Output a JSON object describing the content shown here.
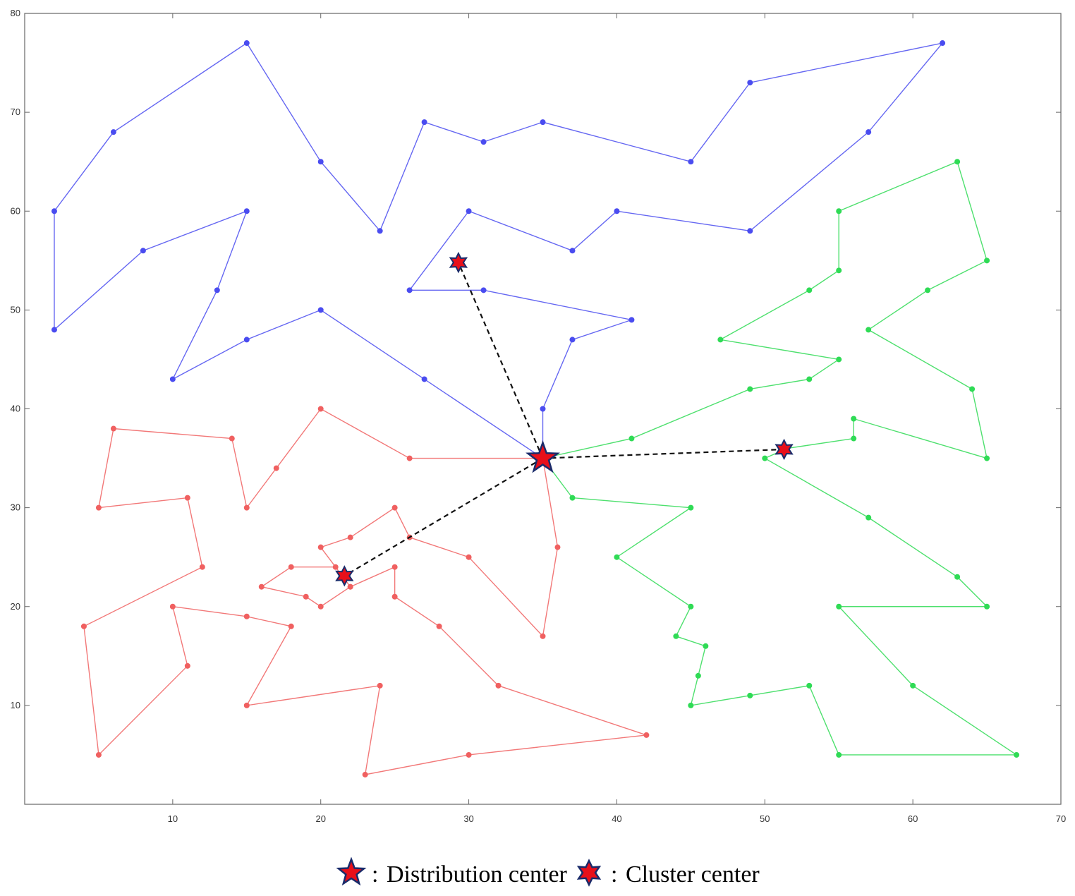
{
  "chart_data": {
    "type": "line",
    "title": "",
    "xlabel": "",
    "ylabel": "",
    "xlim": [
      0,
      70
    ],
    "ylim": [
      0,
      80
    ],
    "x_ticks": [
      "10",
      "20",
      "30",
      "40",
      "50",
      "60",
      "70"
    ],
    "y_ticks": [
      "10",
      "20",
      "30",
      "40",
      "50",
      "60",
      "70",
      "80"
    ],
    "grid": false,
    "distribution_center": {
      "x": 35,
      "y": 35
    },
    "series": [
      {
        "name": "blue route",
        "color": "#4a4cf0",
        "points": [
          [
            35,
            35
          ],
          [
            27,
            43
          ],
          [
            20,
            50
          ],
          [
            15,
            47
          ],
          [
            10,
            43
          ],
          [
            13,
            52
          ],
          [
            15,
            60
          ],
          [
            8,
            56
          ],
          [
            2,
            48
          ],
          [
            2,
            60
          ],
          [
            6,
            68
          ],
          [
            15,
            77
          ],
          [
            20,
            65
          ],
          [
            24,
            58
          ],
          [
            27,
            69
          ],
          [
            31,
            67
          ],
          [
            35,
            69
          ],
          [
            45,
            65
          ],
          [
            49,
            73
          ],
          [
            62,
            77
          ],
          [
            57,
            68
          ],
          [
            49,
            58
          ],
          [
            40,
            60
          ],
          [
            37,
            56
          ],
          [
            30,
            60
          ],
          [
            26,
            52
          ],
          [
            31,
            52
          ],
          [
            41,
            49
          ],
          [
            37,
            47
          ],
          [
            35,
            40
          ],
          [
            35,
            35
          ]
        ]
      },
      {
        "name": "red route",
        "color": "#f06060",
        "points": [
          [
            35,
            35
          ],
          [
            26,
            35
          ],
          [
            20,
            40
          ],
          [
            17,
            34
          ],
          [
            15,
            30
          ],
          [
            14,
            37
          ],
          [
            6,
            38
          ],
          [
            5,
            30
          ],
          [
            11,
            31
          ],
          [
            12,
            24
          ],
          [
            4,
            18
          ],
          [
            5,
            5
          ],
          [
            11,
            14
          ],
          [
            10,
            20
          ],
          [
            15,
            19
          ],
          [
            18,
            18
          ],
          [
            15,
            10
          ],
          [
            24,
            12
          ],
          [
            23,
            3
          ],
          [
            30,
            5
          ],
          [
            42,
            7
          ],
          [
            32,
            12
          ],
          [
            28,
            18
          ],
          [
            25,
            21
          ],
          [
            25,
            24
          ],
          [
            22,
            22
          ],
          [
            21,
            24
          ],
          [
            18,
            24
          ],
          [
            16,
            22
          ],
          [
            19,
            21
          ],
          [
            20,
            20
          ],
          [
            22,
            22
          ],
          [
            20,
            26
          ],
          [
            22,
            27
          ],
          [
            25,
            30
          ],
          [
            26,
            27
          ],
          [
            30,
            25
          ],
          [
            35,
            17
          ],
          [
            36,
            26
          ],
          [
            35,
            35
          ]
        ]
      },
      {
        "name": "green route",
        "color": "#2fdb55",
        "points": [
          [
            35,
            35
          ],
          [
            37,
            31
          ],
          [
            45,
            30
          ],
          [
            40,
            25
          ],
          [
            45,
            20
          ],
          [
            44,
            17
          ],
          [
            46,
            16
          ],
          [
            45.5,
            13
          ],
          [
            45,
            10
          ],
          [
            49,
            11
          ],
          [
            53,
            12
          ],
          [
            55,
            5
          ],
          [
            67,
            5
          ],
          [
            60,
            12
          ],
          [
            55,
            20
          ],
          [
            65,
            20
          ],
          [
            63,
            23
          ],
          [
            57,
            29
          ],
          [
            50,
            35
          ],
          [
            51.5,
            36
          ],
          [
            56,
            37
          ],
          [
            56,
            39
          ],
          [
            65,
            35
          ],
          [
            64,
            42
          ],
          [
            57,
            48
          ],
          [
            61,
            52
          ],
          [
            65,
            55
          ],
          [
            63,
            65
          ],
          [
            55,
            60
          ],
          [
            55,
            54
          ],
          [
            53,
            52
          ],
          [
            47,
            47
          ],
          [
            55,
            45
          ],
          [
            53,
            43
          ],
          [
            49,
            42
          ],
          [
            41,
            37
          ],
          [
            35,
            35
          ]
        ]
      }
    ],
    "cluster_centers": [
      {
        "x": 29.3,
        "y": 54.8
      },
      {
        "x": 21.6,
        "y": 23.1
      },
      {
        "x": 51.3,
        "y": 35.9
      }
    ],
    "legend": {
      "placement": "bottom-center",
      "items": [
        {
          "symbol": "five-point-star",
          "label": "Distribution center"
        },
        {
          "symbol": "six-point-star",
          "label": "Cluster center"
        }
      ]
    },
    "legend_separator": ":"
  },
  "colors": {
    "star_fill": "#e8101a",
    "star_stroke": "#1a2b6a",
    "axis": "#555555"
  }
}
